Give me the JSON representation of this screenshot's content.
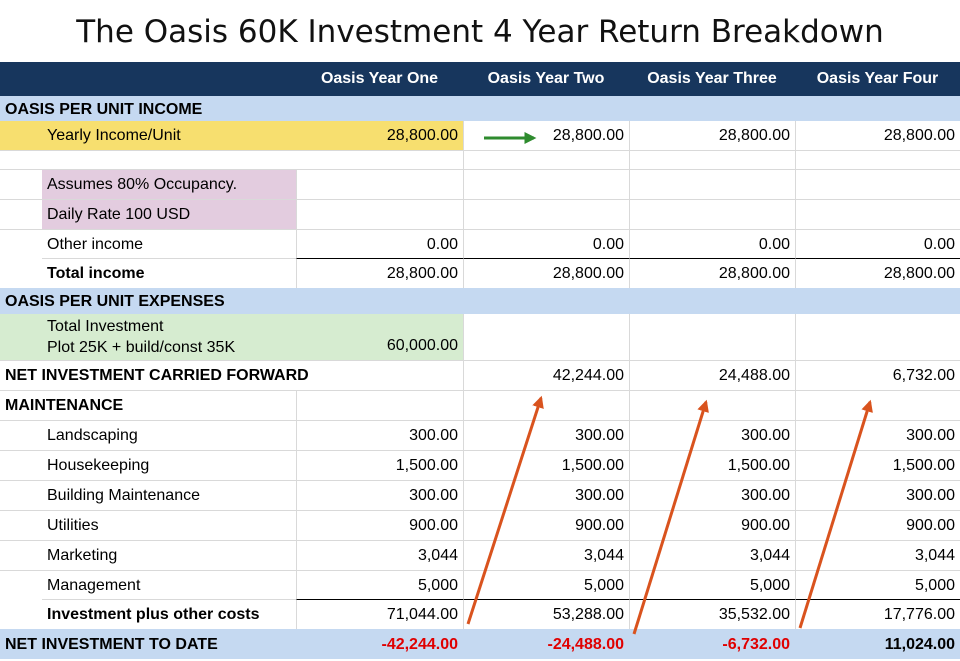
{
  "title": "The Oasis 60K Investment 4 Year Return Breakdown",
  "columns": [
    "Oasis Year One",
    "Oasis Year Two",
    "Oasis Year Three",
    "Oasis Year Four"
  ],
  "income": {
    "section": "OASIS PER UNIT INCOME",
    "yearly_income": {
      "label": "Yearly Income/Unit",
      "values": [
        "28,800.00",
        "28,800.00",
        "28,800.00",
        "28,800.00"
      ]
    },
    "note1": "Assumes 80% Occupancy.",
    "note2": "Daily Rate 100 USD",
    "other_income": {
      "label": "Other income",
      "values": [
        "0.00",
        "0.00",
        "0.00",
        "0.00"
      ]
    },
    "total_income": {
      "label": "Total income",
      "values": [
        "28,800.00",
        "28,800.00",
        "28,800.00",
        "28,800.00"
      ]
    }
  },
  "expenses": {
    "section": "OASIS PER UNIT EXPENSES",
    "total_investment": {
      "label_line1": "Total Investment",
      "label_line2": "Plot 25K + build/const 35K",
      "value": "60,000.00"
    },
    "carried_forward": {
      "label": "NET INVESTMENT CARRIED FORWARD",
      "values": [
        "",
        "42,244.00",
        "24,488.00",
        "6,732.00"
      ]
    }
  },
  "maintenance": {
    "section": "MAINTENANCE",
    "rows": [
      {
        "label": "Landscaping",
        "values": [
          "300.00",
          "300.00",
          "300.00",
          "300.00"
        ]
      },
      {
        "label": "Housekeeping",
        "values": [
          "1,500.00",
          "1,500.00",
          "1,500.00",
          "1,500.00"
        ]
      },
      {
        "label": "Building Maintenance",
        "values": [
          "300.00",
          "300.00",
          "300.00",
          "300.00"
        ]
      },
      {
        "label": "Utilities",
        "values": [
          "900.00",
          "900.00",
          "900.00",
          "900.00"
        ]
      },
      {
        "label": "Marketing",
        "values": [
          "3,044",
          "3,044",
          "3,044",
          "3,044"
        ]
      },
      {
        "label": "Management",
        "values": [
          "5,000",
          "5,000",
          "5,000",
          "5,000"
        ]
      }
    ],
    "total": {
      "label": "Investment plus other costs",
      "values": [
        "71,044.00",
        "53,288.00",
        "35,532.00",
        "17,776.00"
      ]
    }
  },
  "net_to_date": {
    "label": "NET INVESTMENT TO DATE",
    "values": [
      "-42,244.00",
      "-24,488.00",
      "-6,732.00",
      "11,024.00"
    ]
  },
  "colors": {
    "header": "#17365d",
    "section": "#c5d9f1",
    "highlight_yellow": "#f7df6f",
    "highlight_pink": "#e3ccdf",
    "highlight_green": "#d6ecd0",
    "negative": "#e00000",
    "arrow_green": "#2e8b2e",
    "arrow_orange": "#d9531e"
  }
}
